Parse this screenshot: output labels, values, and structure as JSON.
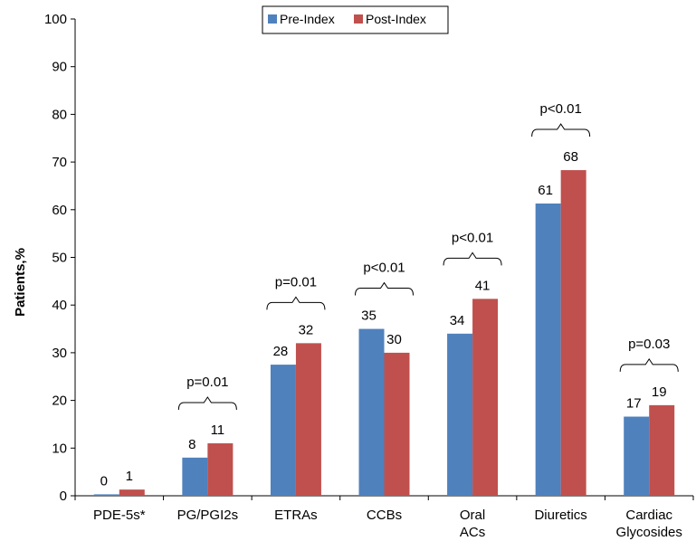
{
  "chart_data": {
    "type": "bar",
    "ylabel": "Patients,%",
    "ylim": [
      0,
      100
    ],
    "yticks": [
      0,
      10,
      20,
      30,
      40,
      50,
      60,
      70,
      80,
      90,
      100
    ],
    "categories": [
      "PDE-5s*",
      "PG/PGI2s",
      "ETRAs",
      "CCBs",
      "Oral ACs",
      "Diuretics",
      "Cardiac Glycosides"
    ],
    "series": [
      {
        "name": "Pre-Index",
        "color": "#4F81BD",
        "values": [
          0.3,
          8,
          27.5,
          35,
          34,
          61.3,
          16.6
        ]
      },
      {
        "name": "Post-Index",
        "color": "#C0504D",
        "values": [
          1.3,
          11,
          32,
          30,
          41.3,
          68.3,
          19
        ]
      }
    ],
    "value_labels": {
      "Pre-Index": [
        "0",
        "8",
        "28",
        "35",
        "34",
        "61",
        "17"
      ],
      "Post-Index": [
        "1",
        "11",
        "32",
        "30",
        "41",
        "68",
        "19"
      ]
    },
    "pvalues": [
      "",
      "p=0.01",
      "p=0.01",
      "p<0.01",
      "p<0.01",
      "p<0.01",
      "p=0.03"
    ],
    "legend": {
      "placement": "top-center",
      "entries": [
        "Pre-Index",
        "Post-Index"
      ]
    },
    "grid": false
  }
}
